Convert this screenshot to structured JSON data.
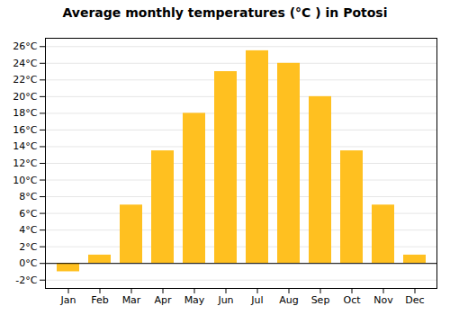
{
  "chart_data": {
    "type": "bar",
    "title": "Average monthly temperatures (°C ) in Potosi",
    "categories": [
      "Jan",
      "Feb",
      "Mar",
      "Apr",
      "May",
      "Jun",
      "Jul",
      "Aug",
      "Sep",
      "Oct",
      "Nov",
      "Dec"
    ],
    "values": [
      -1.0,
      1.0,
      7.0,
      13.5,
      18.0,
      23.0,
      25.5,
      24.0,
      20.0,
      13.5,
      7.0,
      1.0
    ],
    "color": "#FFC020",
    "ylim": [
      -3,
      27
    ],
    "yticks": [
      {
        "value": -2,
        "label": "-2°C"
      },
      {
        "value": 0,
        "label": "0°C"
      },
      {
        "value": 2,
        "label": "2°C"
      },
      {
        "value": 4,
        "label": "4°C"
      },
      {
        "value": 6,
        "label": "6°C"
      },
      {
        "value": 8,
        "label": "8°C"
      },
      {
        "value": 10,
        "label": "10°C"
      },
      {
        "value": 12,
        "label": "12°C"
      },
      {
        "value": 14,
        "label": "14°C"
      },
      {
        "value": 16,
        "label": "16°C"
      },
      {
        "value": 18,
        "label": "18°C"
      },
      {
        "value": 20,
        "label": "20°C"
      },
      {
        "value": 22,
        "label": "22°C"
      },
      {
        "value": 24,
        "label": "24°C"
      },
      {
        "value": 26,
        "label": "26°C"
      }
    ],
    "grid": true
  }
}
